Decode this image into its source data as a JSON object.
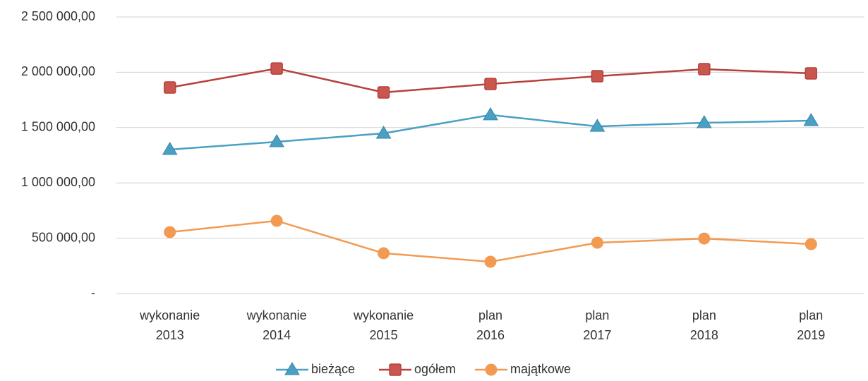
{
  "chart_data": {
    "type": "line",
    "categories": [
      "wykonanie 2013",
      "wykonanie 2014",
      "wykonanie 2015",
      "plan 2016",
      "plan 2017",
      "plan 2018",
      "plan 2019"
    ],
    "series": [
      {
        "name": "bieżące",
        "color": "#4a9fc4",
        "marker": "triangle",
        "values": [
          1301000,
          1371000,
          1448000,
          1614000,
          1511000,
          1543000,
          1562000
        ]
      },
      {
        "name": "ogółem",
        "color": "#b8403b",
        "marker": "square",
        "values": [
          1862000,
          2034000,
          1818000,
          1894000,
          1964000,
          2028000,
          1990000
        ]
      },
      {
        "name": "majątkowe",
        "color": "#f39a52",
        "marker": "circle",
        "values": [
          555000,
          657000,
          364000,
          287000,
          459000,
          497000,
          446000
        ]
      }
    ],
    "ylim": [
      0,
      2500000
    ],
    "yticks": [
      {
        "value": 0,
        "label": "-"
      },
      {
        "value": 500000,
        "label": "500 000,00"
      },
      {
        "value": 1000000,
        "label": "1 000 000,00"
      },
      {
        "value": 1500000,
        "label": "1 500 000,00"
      },
      {
        "value": 2000000,
        "label": "2 000 000,00"
      },
      {
        "value": 2500000,
        "label": "2 500 000,00"
      }
    ],
    "grid": true,
    "legend": "bottom"
  }
}
